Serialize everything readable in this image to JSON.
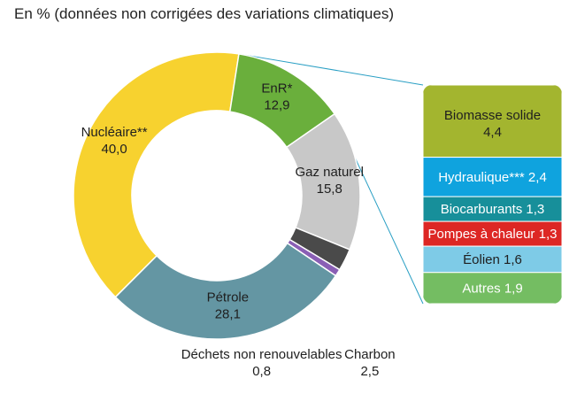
{
  "title": "En % (données non corrigées des variations climatiques)",
  "chart_data": [
    {
      "type": "pie",
      "variant": "donut",
      "unit": "%",
      "slices": [
        {
          "name": "Nucléaire**",
          "value_label": "40,0",
          "value": 40.0,
          "color": "#f7d22f"
        },
        {
          "name": "EnR*",
          "value_label": "12,9",
          "value": 12.9,
          "color": "#6aaf3c"
        },
        {
          "name": "Gaz naturel",
          "value_label": "15,8",
          "value": 15.8,
          "color": "#c8c8c8"
        },
        {
          "name": "Charbon",
          "value_label": "2,5",
          "value": 2.5,
          "color": "#4a4a4a"
        },
        {
          "name": "Déchets non renouvelables",
          "value_label": "0,8",
          "value": 0.8,
          "color": "#8a5fb5"
        },
        {
          "name": "Pétrole",
          "value_label": "28,1",
          "value": 28.1,
          "color": "#6496a3"
        }
      ]
    },
    {
      "type": "bar",
      "variant": "stacked-breakdown",
      "parent": "EnR*",
      "unit": "%",
      "segments": [
        {
          "name": "Biomasse solide",
          "value_label": "4,4",
          "value": 4.4,
          "color": "#a3b52f",
          "text_color": "#1f1f1f"
        },
        {
          "name": "Hydraulique***",
          "value_label": "2,4",
          "value": 2.4,
          "color": "#0fa3de",
          "text_color": "#ffffff"
        },
        {
          "name": "Biocarburants",
          "value_label": "1,3",
          "value": 1.3,
          "color": "#178f9a",
          "text_color": "#ffffff"
        },
        {
          "name": "Pompes à chaleur",
          "value_label": "1,3",
          "value": 1.3,
          "color": "#dd2724",
          "text_color": "#ffffff"
        },
        {
          "name": "Éolien",
          "value_label": "1,6",
          "value": 1.6,
          "color": "#7ecbe7",
          "text_color": "#1f1f1f"
        },
        {
          "name": "Autres",
          "value_label": "1,9",
          "value": 1.9,
          "color": "#74bd62",
          "text_color": "#ffffff"
        }
      ]
    }
  ]
}
